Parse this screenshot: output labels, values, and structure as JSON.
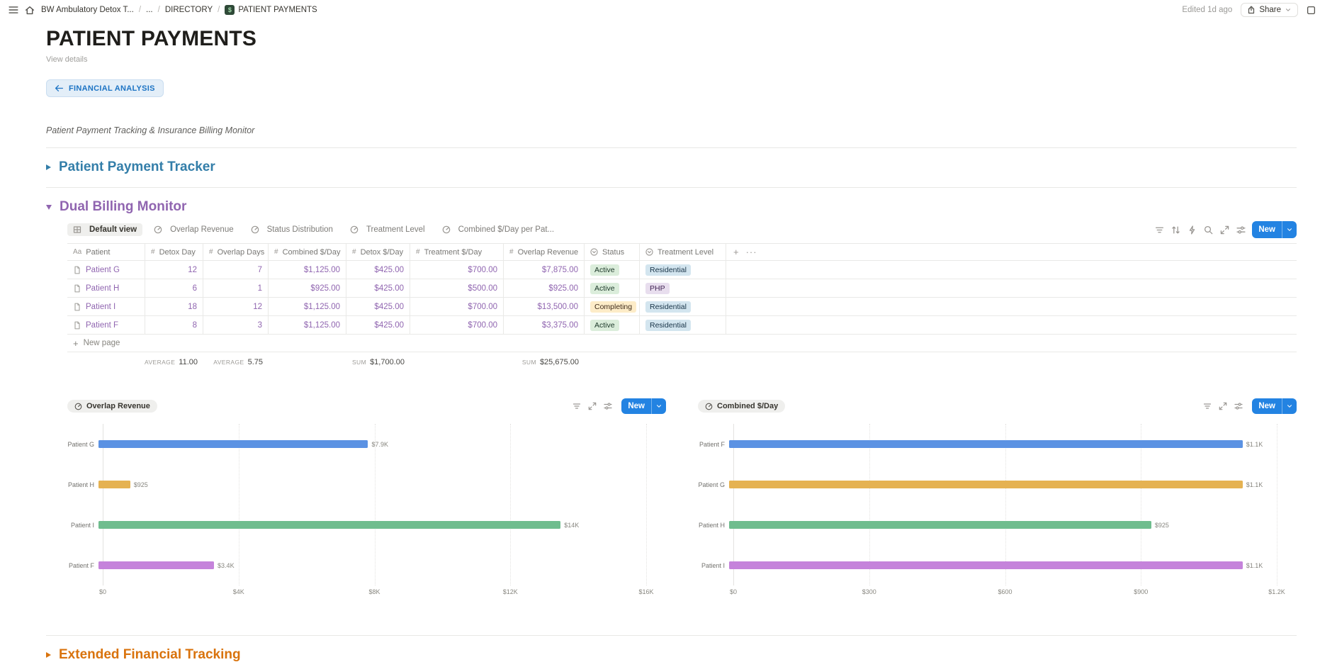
{
  "topbar": {
    "breadcrumb": [
      {
        "label": "BW Ambulatory Detox T..."
      },
      {
        "label": "..."
      },
      {
        "label": "DIRECTORY"
      },
      {
        "label": "PATIENT PAYMENTS",
        "has_icon": true
      }
    ],
    "edited": "Edited 1d ago",
    "share_label": "Share"
  },
  "page": {
    "title": "PATIENT PAYMENTS",
    "view_details": "View details",
    "back_button": "FINANCIAL ANALYSIS",
    "description": "Patient Payment Tracking & Insurance Billing Monitor",
    "sections": {
      "tracker": "Patient Payment Tracker",
      "dual": "Dual Billing Monitor",
      "extended": "Extended Financial Tracking"
    }
  },
  "views": {
    "active": "Default view",
    "tabs": [
      "Overlap Revenue",
      "Status Distribution",
      "Treatment Level",
      "Combined $/Day per Pat..."
    ],
    "toolbar_icons": [
      "filter",
      "sort",
      "zap",
      "search",
      "expand",
      "sliders"
    ],
    "new_label": "New"
  },
  "table": {
    "columns": [
      {
        "icon": "Aa",
        "label": "Patient"
      },
      {
        "icon": "#",
        "label": "Detox Day"
      },
      {
        "icon": "#",
        "label": "Overlap Days"
      },
      {
        "icon": "#",
        "label": "Combined $/Day"
      },
      {
        "icon": "#",
        "label": "Detox $/Day"
      },
      {
        "icon": "#",
        "label": "Treatment $/Day"
      },
      {
        "icon": "#",
        "label": "Overlap Revenue"
      },
      {
        "icon": "select",
        "label": "Status"
      },
      {
        "icon": "select",
        "label": "Treatment Level"
      }
    ],
    "rows": [
      {
        "patient": "Patient G",
        "detox_day": "12",
        "overlap_days": "7",
        "combined": "$1,125.00",
        "detox": "$425.00",
        "treatment": "$700.00",
        "overlap_revenue": "$7,875.00",
        "status": "Active",
        "status_color": "green",
        "level": "Residential",
        "level_color": "blue"
      },
      {
        "patient": "Patient H",
        "detox_day": "6",
        "overlap_days": "1",
        "combined": "$925.00",
        "detox": "$425.00",
        "treatment": "$500.00",
        "overlap_revenue": "$925.00",
        "status": "Active",
        "status_color": "green",
        "level": "PHP",
        "level_color": "purple"
      },
      {
        "patient": "Patient I",
        "detox_day": "18",
        "overlap_days": "12",
        "combined": "$1,125.00",
        "detox": "$425.00",
        "treatment": "$700.00",
        "overlap_revenue": "$13,500.00",
        "status": "Completing",
        "status_color": "yellow",
        "level": "Residential",
        "level_color": "blue"
      },
      {
        "patient": "Patient F",
        "detox_day": "8",
        "overlap_days": "3",
        "combined": "$1,125.00",
        "detox": "$425.00",
        "treatment": "$700.00",
        "overlap_revenue": "$3,375.00",
        "status": "Active",
        "status_color": "green",
        "level": "Residential",
        "level_color": "blue"
      }
    ],
    "new_page": "New page",
    "aggregates": [
      {
        "column": "Detox Day",
        "label": "AVERAGE",
        "value": "11.00"
      },
      {
        "column": "Overlap Days",
        "label": "AVERAGE",
        "value": "5.75"
      },
      {
        "column": "Detox $/Day",
        "label": "SUM",
        "value": "$1,700.00"
      },
      {
        "column": "Overlap Revenue",
        "label": "SUM",
        "value": "$25,675.00"
      }
    ]
  },
  "chart_data": [
    {
      "type": "bar",
      "orientation": "horizontal",
      "title": "Overlap Revenue",
      "categories": [
        "Patient G",
        "Patient H",
        "Patient I",
        "Patient F"
      ],
      "values": [
        7875,
        925,
        13500,
        3375
      ],
      "value_labels": [
        "$7.9K",
        "$925",
        "$14K",
        "$3.4K"
      ],
      "xlim": [
        0,
        16000
      ],
      "x_ticks": [
        "$0",
        "$4K",
        "$8K",
        "$12K",
        "$16K"
      ],
      "bar_colors": [
        "#5B92E3",
        "#E5B252",
        "#6FBD8E",
        "#C583DB"
      ],
      "grid": "dotted",
      "legend": "none",
      "new_label": "New",
      "control_icons": [
        "filter",
        "expand",
        "sliders"
      ]
    },
    {
      "type": "bar",
      "orientation": "horizontal",
      "title": "Combined $/Day",
      "categories": [
        "Patient F",
        "Patient G",
        "Patient H",
        "Patient I"
      ],
      "values": [
        1125,
        1125,
        925,
        1125
      ],
      "value_labels": [
        "$1.1K",
        "$1.1K",
        "$925",
        "$1.1K"
      ],
      "xlim": [
        0,
        1200
      ],
      "x_ticks": [
        "$0",
        "$300",
        "$600",
        "$900",
        "$1.2K"
      ],
      "bar_colors": [
        "#5B92E3",
        "#E5B252",
        "#6FBD8E",
        "#C583DB"
      ],
      "grid": "dotted",
      "legend": "none",
      "new_label": "New",
      "control_icons": [
        "filter",
        "expand",
        "sliders"
      ]
    }
  ],
  "colors": {
    "accent": "#2383E2",
    "heading_blue": "#337EA9",
    "heading_purple": "#9065B0",
    "heading_orange": "#D9730D",
    "table_text": "#9065B0",
    "chip_green_bg": "#DBEDDB",
    "chip_yellow_bg": "#FDECC8",
    "chip_blue_bg": "#D3E5EF",
    "chip_purple_bg": "#E8DEEE"
  }
}
